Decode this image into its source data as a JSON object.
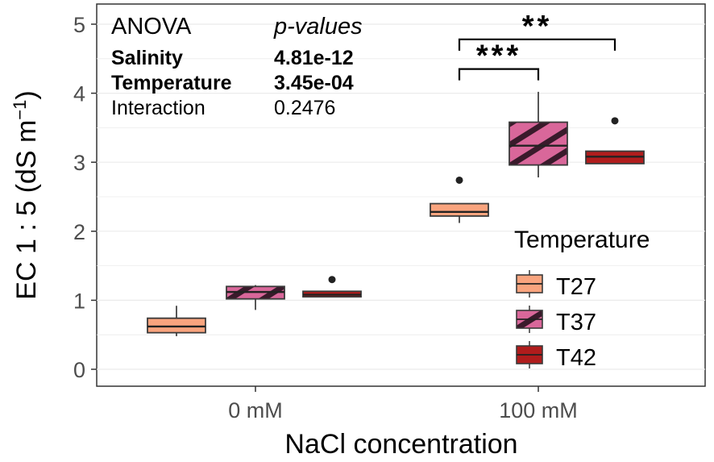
{
  "chart_data": {
    "type": "boxplot",
    "xlabel": "NaCl concentration",
    "ylabel": "EC 1 : 5 (dS m",
    "ylabel_superscript": "−1",
    "ylabel_close": ")",
    "categories": [
      "0 mM",
      "100 mM"
    ],
    "ylim": [
      -0.2,
      5.1
    ],
    "yticks": [
      0,
      1,
      2,
      3,
      4,
      5
    ],
    "ytick_labels": [
      "0",
      "1",
      "2",
      "3",
      "4",
      "5"
    ],
    "grid": true,
    "series": [
      {
        "name": "T27",
        "color": "#f9a47e",
        "pattern": "none",
        "boxes": [
          {
            "category": "0 mM",
            "min": 0.48,
            "q1": 0.53,
            "median": 0.62,
            "q3": 0.74,
            "max": 0.92,
            "outliers": []
          },
          {
            "category": "100 mM",
            "min": 2.12,
            "q1": 2.22,
            "median": 2.28,
            "q3": 2.4,
            "max": 2.4,
            "outliers": [
              2.74
            ]
          }
        ]
      },
      {
        "name": "T37",
        "color": "#d9679a",
        "pattern": "stripes",
        "boxes": [
          {
            "category": "0 mM",
            "min": 0.86,
            "q1": 1.02,
            "median": 1.12,
            "q3": 1.2,
            "max": 1.22,
            "outliers": []
          },
          {
            "category": "100 mM",
            "min": 2.78,
            "q1": 2.96,
            "median": 3.24,
            "q3": 3.58,
            "max": 4.02,
            "outliers": []
          }
        ]
      },
      {
        "name": "T42",
        "color": "#b01c1c",
        "pattern": "none",
        "boxes": [
          {
            "category": "0 mM",
            "min": 1.05,
            "q1": 1.05,
            "median": 1.08,
            "q3": 1.13,
            "max": 1.13,
            "outliers": [
              1.3
            ]
          },
          {
            "category": "100 mM",
            "min": 2.98,
            "q1": 2.98,
            "median": 3.08,
            "q3": 3.16,
            "max": 3.16,
            "outliers": [
              3.6
            ]
          }
        ]
      }
    ],
    "significance": [
      {
        "label": "***",
        "from": "T27",
        "to": "T37",
        "category": "100 mM",
        "y": 4.35
      },
      {
        "label": "**",
        "from": "T27",
        "to": "T42",
        "category": "100 mM",
        "y": 4.78
      }
    ],
    "anova": {
      "title": "ANOVA",
      "pvalue_header": "p-values",
      "rows": [
        {
          "term": "Salinity",
          "value": "4.81e-12",
          "bold": true
        },
        {
          "term": "Temperature",
          "value": "3.45e-04",
          "bold": true
        },
        {
          "term": "Interaction",
          "value": "0.2476",
          "bold": false
        }
      ]
    },
    "legend": {
      "title": "Temperature",
      "entries": [
        "T27",
        "T37",
        "T42"
      ],
      "placement": "right"
    }
  }
}
